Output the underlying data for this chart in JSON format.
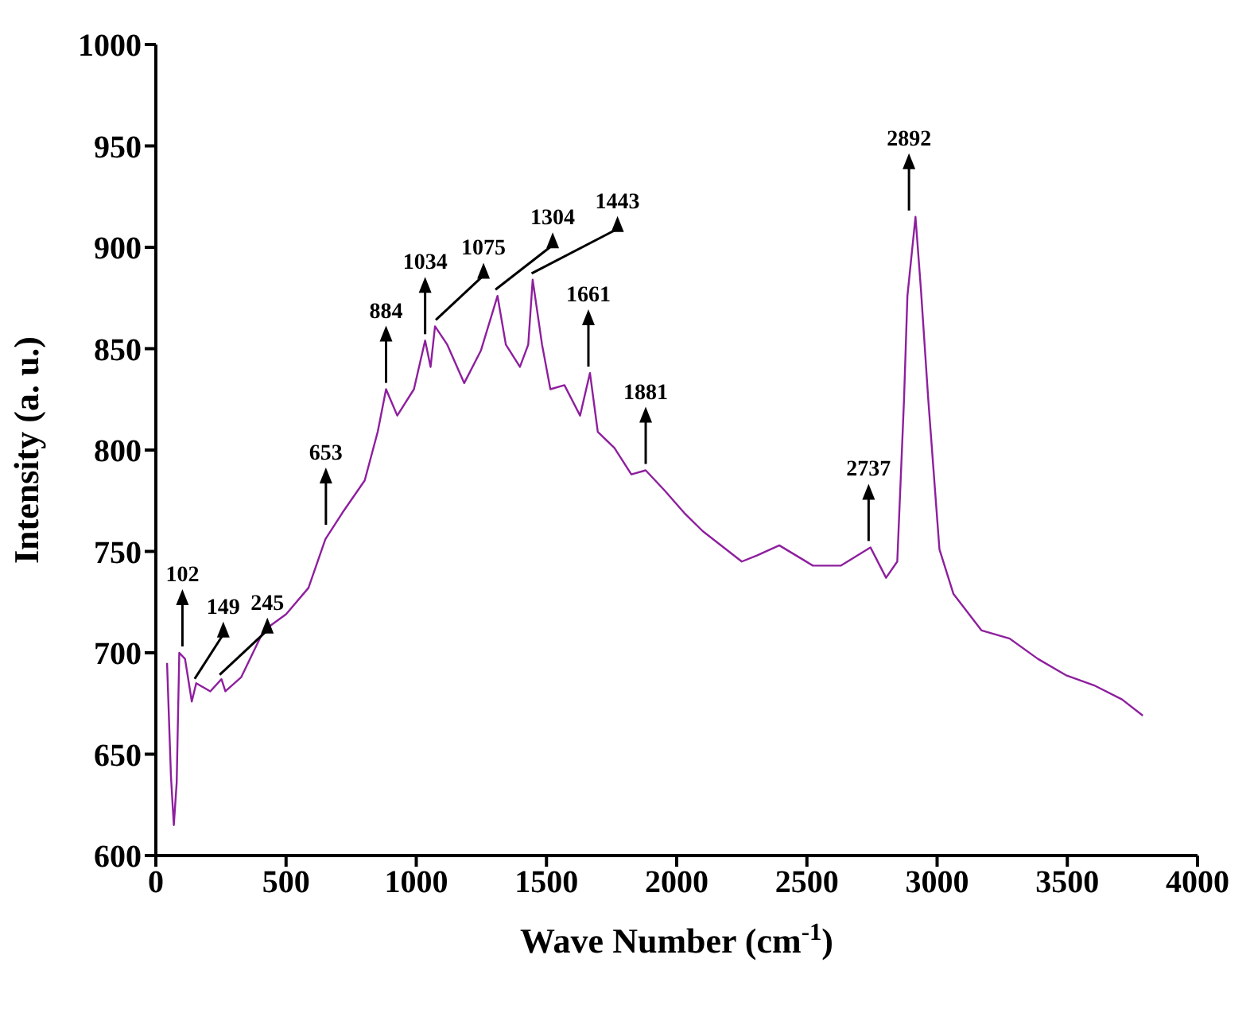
{
  "chart_data": {
    "type": "line",
    "xlabel": "Wave Number (cm$^{-1}$)",
    "ylabel": "Intensity (a. u.)",
    "xlim": [
      0,
      4000
    ],
    "xticks": [
      0,
      500,
      1000,
      1500,
      2000,
      2500,
      3000,
      3500,
      4000
    ],
    "ylim": [
      600,
      1000
    ],
    "yticks": [
      600,
      650,
      700,
      750,
      800,
      850,
      900,
      950,
      1000
    ],
    "grid": false,
    "series": [
      {
        "color": "#8e1f9e",
        "x": [
          43,
          58,
          69,
          80,
          90,
          112,
          138,
          155,
          209,
          252,
          267,
          328,
          414,
          500,
          586,
          651,
          716,
          802,
          852,
          884,
          927,
          991,
          1034,
          1055,
          1072,
          1119,
          1184,
          1248,
          1312,
          1344,
          1398,
          1430,
          1447,
          1483,
          1515,
          1569,
          1629,
          1667,
          1697,
          1761,
          1826,
          1881,
          1954,
          2029,
          2100,
          2200,
          2250,
          2308,
          2394,
          2523,
          2631,
          2744,
          2804,
          2847,
          2873,
          2886,
          2917,
          2938,
          2966,
          3009,
          3063,
          3171,
          3279,
          3387,
          3494,
          3602,
          3710,
          3790
        ],
        "values": [
          695,
          639,
          615,
          636,
          700,
          697,
          676,
          685,
          681,
          687,
          681,
          688,
          711,
          719,
          732,
          756,
          769,
          785,
          809,
          830,
          817,
          830,
          854,
          841,
          861,
          852,
          833,
          849,
          876,
          852,
          841,
          852,
          884,
          852,
          830,
          832,
          817,
          838,
          809,
          801,
          788,
          790,
          780,
          769,
          760,
          750,
          745,
          748,
          753,
          743,
          743,
          752,
          737,
          745,
          825,
          876,
          915,
          879,
          825,
          751,
          729,
          711,
          707,
          697,
          689,
          684,
          677,
          669
        ]
      }
    ],
    "annotations": [
      {
        "text": "102",
        "x": 102,
        "y": 700
      },
      {
        "text": "149",
        "x": 149,
        "y": 684
      },
      {
        "text": "245",
        "x": 245,
        "y": 686
      },
      {
        "text": "653",
        "x": 653,
        "y": 760
      },
      {
        "text": "884",
        "x": 884,
        "y": 830
      },
      {
        "text": "1034",
        "x": 1034,
        "y": 854
      },
      {
        "text": "1075",
        "x": 1075,
        "y": 861
      },
      {
        "text": "1304",
        "x": 1304,
        "y": 876
      },
      {
        "text": "1443",
        "x": 1443,
        "y": 884
      },
      {
        "text": "1661",
        "x": 1661,
        "y": 838
      },
      {
        "text": "1881",
        "x": 1881,
        "y": 790
      },
      {
        "text": "2737",
        "x": 2737,
        "y": 752
      },
      {
        "text": "2892",
        "x": 2892,
        "y": 915
      }
    ]
  }
}
